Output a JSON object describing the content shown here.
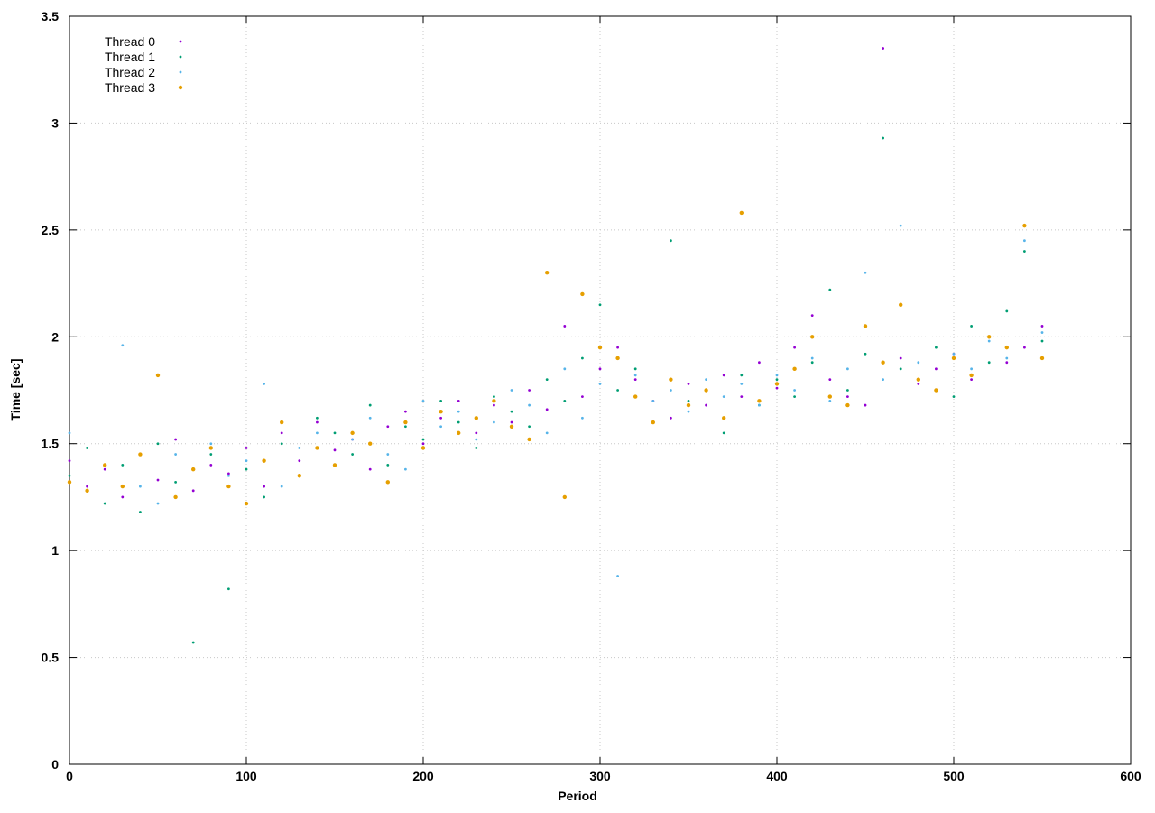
{
  "chart_data": {
    "type": "scatter",
    "x_label": "Period",
    "y_label": "Time [sec]",
    "x": [
      0,
      10,
      20,
      30,
      40,
      50,
      60,
      70,
      80,
      90,
      100,
      110,
      120,
      130,
      140,
      150,
      160,
      170,
      180,
      190,
      200,
      210,
      220,
      230,
      240,
      250,
      260,
      270,
      280,
      290,
      300,
      310,
      320,
      330,
      340,
      350,
      360,
      370,
      380,
      390,
      400,
      410,
      420,
      430,
      440,
      450,
      460,
      470,
      480,
      490,
      500,
      510,
      520,
      530,
      540,
      550
    ],
    "series": [
      {
        "name": "Thread 0",
        "color": "#9400d3",
        "marker_size": 1.4,
        "values": [
          1.42,
          1.3,
          1.38,
          1.25,
          1.45,
          1.33,
          1.52,
          1.28,
          1.4,
          1.36,
          1.48,
          1.3,
          1.55,
          1.42,
          1.6,
          1.47,
          1.52,
          1.38,
          1.58,
          1.65,
          1.5,
          1.62,
          1.7,
          1.55,
          1.68,
          1.6,
          1.75,
          1.66,
          2.05,
          1.72,
          1.85,
          1.95,
          1.8,
          1.7,
          1.62,
          1.78,
          1.68,
          1.82,
          1.72,
          1.88,
          1.76,
          1.95,
          2.1,
          1.8,
          1.72,
          1.68,
          3.35,
          1.9,
          1.78,
          1.85,
          1.92,
          1.8,
          2.0,
          1.88,
          1.95,
          2.05
        ]
      },
      {
        "name": "Thread 1",
        "color": "#009e73",
        "marker_size": 1.4,
        "values": [
          1.35,
          1.48,
          1.22,
          1.4,
          1.18,
          1.5,
          1.32,
          0.57,
          1.45,
          0.82,
          1.38,
          1.25,
          1.5,
          1.35,
          1.62,
          1.55,
          1.45,
          1.68,
          1.4,
          1.58,
          1.52,
          1.7,
          1.6,
          1.48,
          1.72,
          1.65,
          1.58,
          1.8,
          1.7,
          1.9,
          2.15,
          1.75,
          1.85,
          1.6,
          2.45,
          1.7,
          1.75,
          1.55,
          1.82,
          1.68,
          1.8,
          1.72,
          1.88,
          2.22,
          1.75,
          1.92,
          2.93,
          1.85,
          1.8,
          1.95,
          1.72,
          2.05,
          1.88,
          2.12,
          2.4,
          1.98
        ]
      },
      {
        "name": "Thread 2",
        "color": "#56b4e9",
        "marker_size": 1.4,
        "values": [
          1.55,
          1.28,
          1.4,
          1.96,
          1.3,
          1.22,
          1.45,
          1.38,
          1.5,
          1.35,
          1.42,
          1.78,
          1.3,
          1.48,
          1.55,
          1.4,
          1.52,
          1.62,
          1.45,
          1.38,
          1.7,
          1.58,
          1.65,
          1.52,
          1.6,
          1.75,
          1.68,
          1.55,
          1.85,
          1.62,
          1.78,
          0.88,
          1.82,
          1.7,
          1.75,
          1.65,
          1.8,
          1.72,
          1.78,
          1.68,
          1.82,
          1.75,
          1.9,
          1.7,
          1.85,
          2.3,
          1.8,
          2.52,
          1.88,
          1.75,
          1.92,
          1.85,
          1.98,
          1.9,
          2.45,
          2.02
        ]
      },
      {
        "name": "Thread 3",
        "color": "#e69f00",
        "marker_size": 2.2,
        "values": [
          1.32,
          1.28,
          1.4,
          1.3,
          1.45,
          1.82,
          1.25,
          1.38,
          1.48,
          1.3,
          1.22,
          1.42,
          1.6,
          1.35,
          1.48,
          1.4,
          1.55,
          1.5,
          1.32,
          1.6,
          1.48,
          1.65,
          1.55,
          1.62,
          1.7,
          1.58,
          1.52,
          2.3,
          1.25,
          2.2,
          1.95,
          1.9,
          1.72,
          1.6,
          1.8,
          1.68,
          1.75,
          1.62,
          2.58,
          1.7,
          1.78,
          1.85,
          2.0,
          1.72,
          1.68,
          2.05,
          1.88,
          2.15,
          1.8,
          1.75,
          1.9,
          1.82,
          2.0,
          1.95,
          2.52,
          1.9
        ]
      }
    ],
    "xlim": [
      0,
      600
    ],
    "xticks": [
      0,
      100,
      200,
      300,
      400,
      500,
      600
    ],
    "ylim": [
      0,
      3.5
    ],
    "yticks": [
      0,
      0.5,
      1,
      1.5,
      2,
      2.5,
      3,
      3.5
    ],
    "grid": true,
    "legend": "top-left"
  }
}
